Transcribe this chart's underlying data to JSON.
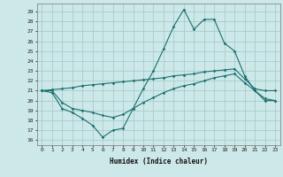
{
  "title": "",
  "xlabel": "Humidex (Indice chaleur)",
  "ylabel": "",
  "background_color": "#cce8e8",
  "grid_color": "#aacccc",
  "line_color": "#1a7070",
  "xlim": [
    -0.5,
    23.5
  ],
  "ylim": [
    15.5,
    29.8
  ],
  "yticks": [
    16,
    17,
    18,
    19,
    20,
    21,
    22,
    23,
    24,
    25,
    26,
    27,
    28,
    29
  ],
  "xticks": [
    0,
    1,
    2,
    3,
    4,
    5,
    6,
    7,
    8,
    9,
    10,
    11,
    12,
    13,
    14,
    15,
    16,
    17,
    18,
    19,
    20,
    21,
    22,
    23
  ],
  "line1_x": [
    0,
    1,
    2,
    3,
    4,
    5,
    6,
    7,
    8,
    9,
    10,
    11,
    12,
    13,
    14,
    15,
    16,
    17,
    18,
    19,
    20,
    21,
    22,
    23
  ],
  "line1_y": [
    21.0,
    20.8,
    19.2,
    18.8,
    18.2,
    17.5,
    16.3,
    17.0,
    17.2,
    19.2,
    21.2,
    23.0,
    25.2,
    27.5,
    29.2,
    27.2,
    28.2,
    28.2,
    25.8,
    25.0,
    22.5,
    21.0,
    20.0,
    20.0
  ],
  "line2_x": [
    0,
    1,
    2,
    3,
    4,
    5,
    6,
    7,
    8,
    9,
    10,
    11,
    12,
    13,
    14,
    15,
    16,
    17,
    18,
    19,
    20,
    21,
    22,
    23
  ],
  "line2_y": [
    21.0,
    21.1,
    21.2,
    21.3,
    21.5,
    21.6,
    21.7,
    21.8,
    21.9,
    22.0,
    22.1,
    22.2,
    22.3,
    22.5,
    22.6,
    22.7,
    22.9,
    23.0,
    23.1,
    23.2,
    22.2,
    21.2,
    21.0,
    21.0
  ],
  "line3_x": [
    0,
    1,
    2,
    3,
    4,
    5,
    6,
    7,
    8,
    9,
    10,
    11,
    12,
    13,
    14,
    15,
    16,
    17,
    18,
    19,
    20,
    21,
    22,
    23
  ],
  "line3_y": [
    21.0,
    21.0,
    19.8,
    19.2,
    19.0,
    18.8,
    18.5,
    18.3,
    18.6,
    19.2,
    19.8,
    20.3,
    20.8,
    21.2,
    21.5,
    21.7,
    22.0,
    22.3,
    22.5,
    22.7,
    21.8,
    21.0,
    20.2,
    20.0
  ]
}
